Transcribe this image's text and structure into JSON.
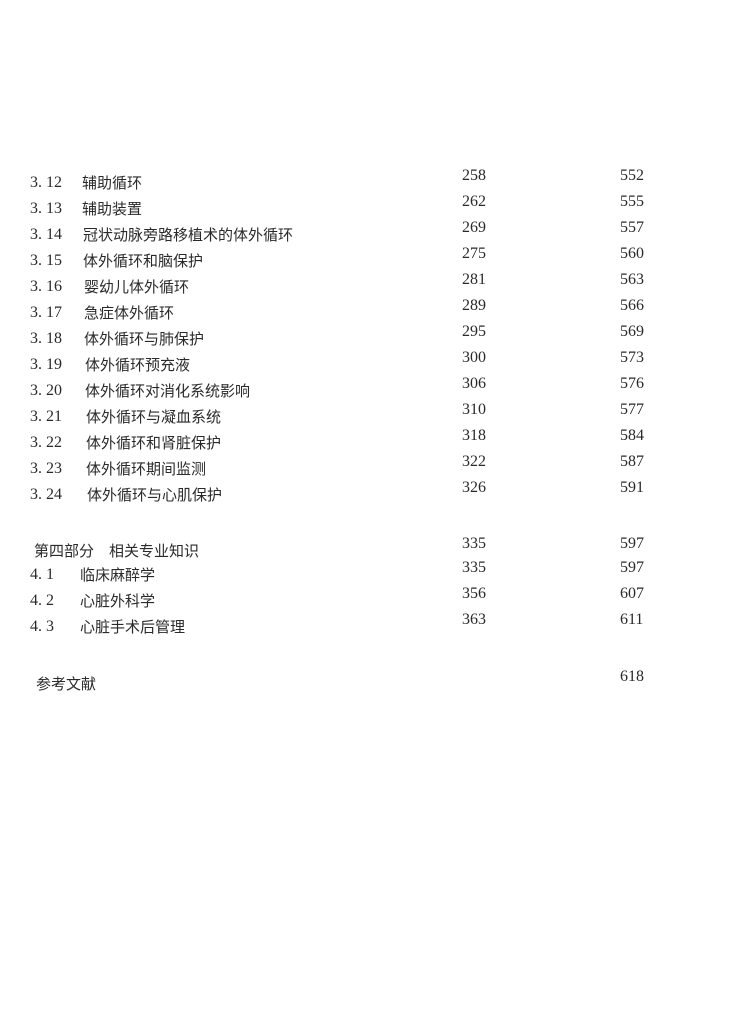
{
  "toc": {
    "sections": [
      {
        "num": "3. 12",
        "title": "辅助循环",
        "page1": "258",
        "page2": "552"
      },
      {
        "num": "3. 13",
        "title": "辅助装置",
        "page1": "262",
        "page2": "555"
      },
      {
        "num": "3. 14",
        "title": "冠状动脉旁路移植术的体外循环",
        "page1": "269",
        "page2": "557"
      },
      {
        "num": "3. 15",
        "title": "体外循环和脑保护",
        "page1": "275",
        "page2": "560"
      },
      {
        "num": "3. 16",
        "title": "婴幼儿体外循环",
        "page1": "281",
        "page2": "563"
      },
      {
        "num": "3. 17",
        "title": "急症体外循环",
        "page1": "289",
        "page2": "566"
      },
      {
        "num": "3. 18",
        "title": "体外循环与肺保护",
        "page1": "295",
        "page2": "569"
      },
      {
        "num": "3. 19",
        "title": "体外循环预充液",
        "page1": "300",
        "page2": "573"
      },
      {
        "num": "3. 20",
        "title": "体外循环对消化系统影响",
        "page1": "306",
        "page2": "576"
      },
      {
        "num": "3. 21",
        "title": "体外循环与凝血系统",
        "page1": "310",
        "page2": "577"
      },
      {
        "num": "3. 22",
        "title": "体外循环和肾脏保护",
        "page1": "318",
        "page2": "584"
      },
      {
        "num": "3. 23",
        "title": "体外循环期间监测",
        "page1": "322",
        "page2": "587"
      },
      {
        "num": "3. 24",
        "title": "体外循环与心肌保护",
        "page1": "326",
        "page2": "591"
      }
    ],
    "part4": {
      "title": "第四部分　相关专业知识",
      "page1": "335",
      "page2": "597"
    },
    "part4_sections": [
      {
        "num": "4. 1",
        "title": "临床麻醉学",
        "page1": "335",
        "page2": "597"
      },
      {
        "num": "4. 2",
        "title": "心脏外科学",
        "page1": "356",
        "page2": "607"
      },
      {
        "num": "4. 3",
        "title": "心脏手术后管理",
        "page1": "363",
        "page2": "611"
      }
    ],
    "references": {
      "title": "参考文献",
      "page2": "618"
    }
  }
}
